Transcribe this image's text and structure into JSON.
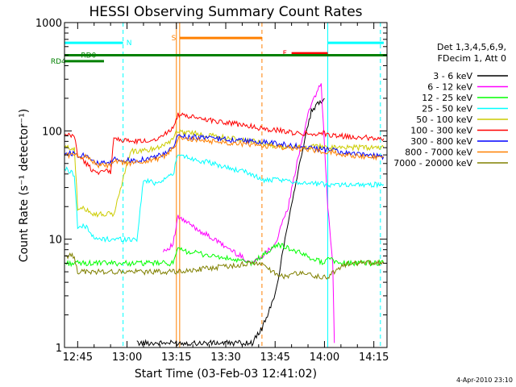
{
  "chart_data": {
    "type": "line",
    "title": "HESSI Observing Summary Count Rates",
    "xlabel": "Start Time (03-Feb-03 12:41:02)",
    "ylabel": "Count Rate (s⁻¹ detector⁻¹)",
    "yscale": "log",
    "ylim": [
      1,
      1000
    ],
    "xlim_minutes": [
      0,
      98
    ],
    "x_units": "minutes after 03-Feb-03 12:41:02",
    "x_ticks": [
      {
        "t": 4,
        "label": "12:45"
      },
      {
        "t": 19,
        "label": "13:00"
      },
      {
        "t": 34,
        "label": "13:15"
      },
      {
        "t": 49,
        "label": "13:30"
      },
      {
        "t": 64,
        "label": "13:45"
      },
      {
        "t": 79,
        "label": "14:00"
      },
      {
        "t": 94,
        "label": "14:15"
      }
    ],
    "y_ticks": [
      {
        "v": 1,
        "label": "1"
      },
      {
        "v": 10,
        "label": "10"
      },
      {
        "v": 100,
        "label": "100"
      },
      {
        "v": 1000,
        "label": "1000"
      }
    ],
    "legend_header": [
      "Det 1,3,4,5,6,9,",
      "FDecim 1, Att 0"
    ],
    "legend_position": "right",
    "series": [
      {
        "name": "3 - 6 keV",
        "color": "#000000",
        "x": [
          22,
          24,
          25,
          30,
          33,
          34.5,
          57,
          60,
          64,
          68,
          72,
          75,
          78,
          79
        ],
        "y": [
          1.1,
          1.1,
          1.1,
          1.1,
          1.1,
          1.1,
          1.1,
          1.5,
          3,
          15,
          60,
          150,
          190,
          200
        ]
      },
      {
        "name": "6 - 12 keV",
        "color": "#ff00ff",
        "x": [
          30,
          31,
          33,
          34.5,
          57,
          60,
          64,
          68,
          72,
          75,
          78,
          80,
          81.5,
          82
        ],
        "y": [
          8,
          8,
          9,
          16,
          6,
          7,
          9,
          20,
          80,
          180,
          270,
          20,
          6,
          1.1
        ]
      },
      {
        "name": "12 - 25 keV",
        "color": "#00ff00",
        "x": [
          0,
          5,
          6,
          16,
          18,
          22,
          24,
          33,
          34.5,
          57,
          65,
          79,
          80,
          83,
          86,
          97
        ],
        "y": [
          6,
          6,
          6,
          6,
          6,
          6,
          6,
          6,
          8,
          6,
          9,
          6,
          7,
          6,
          6,
          6
        ]
      },
      {
        "name": "25 - 50 keV",
        "color": "#00ffff",
        "x": [
          0,
          3,
          4,
          7,
          9,
          14,
          16,
          22,
          24,
          28,
          33,
          34.5,
          57,
          60,
          65,
          79,
          80,
          86,
          97
        ],
        "y": [
          45,
          40,
          13,
          13,
          10,
          10,
          10,
          10,
          35,
          33,
          40,
          60,
          40,
          35,
          35,
          32,
          32,
          32,
          32
        ]
      },
      {
        "name": "50 - 100 keV",
        "color": "#cccc00",
        "x": [
          0,
          3,
          4,
          7,
          9,
          14,
          15,
          20,
          24,
          28,
          32,
          34.5,
          57,
          62,
          68,
          79,
          82,
          88,
          97
        ],
        "y": [
          70,
          70,
          19,
          19,
          17,
          17,
          17,
          65,
          65,
          70,
          80,
          100,
          80,
          75,
          70,
          72,
          70,
          70,
          70
        ]
      },
      {
        "name": "100 - 300 keV",
        "color": "#ff0000",
        "x": [
          0,
          3,
          4,
          9,
          13,
          14,
          15,
          20,
          24,
          28,
          31,
          33,
          34.5,
          57,
          60,
          66,
          70,
          79,
          82,
          88,
          97
        ],
        "y": [
          90,
          90,
          60,
          42,
          42,
          42,
          85,
          80,
          80,
          85,
          95,
          110,
          140,
          110,
          105,
          100,
          95,
          95,
          90,
          88,
          85
        ]
      },
      {
        "name": "300 - 800 keV",
        "color": "#0000ff",
        "x": [
          0,
          3,
          4,
          7,
          10,
          14,
          15,
          20,
          24,
          28,
          31,
          33,
          34.5,
          57,
          62,
          68,
          74,
          80,
          86,
          90,
          97
        ],
        "y": [
          62,
          62,
          60,
          60,
          50,
          50,
          55,
          53,
          55,
          58,
          62,
          70,
          90,
          80,
          78,
          74,
          70,
          67,
          62,
          60,
          58
        ]
      },
      {
        "name": "800 - 7000 keV",
        "color": "#ff8000",
        "x": [
          0,
          3,
          4,
          7,
          10,
          14,
          15,
          20,
          24,
          28,
          31,
          33,
          34.5,
          57,
          62,
          68,
          74,
          80,
          86,
          90,
          97
        ],
        "y": [
          60,
          60,
          58,
          58,
          48,
          48,
          52,
          50,
          52,
          55,
          60,
          68,
          85,
          75,
          72,
          70,
          67,
          64,
          60,
          58,
          57
        ]
      },
      {
        "name": "7000 - 20000 keV",
        "color": "#808000",
        "x": [
          0,
          3,
          4,
          6,
          9,
          14,
          16,
          20,
          24,
          28,
          32,
          34.5,
          57,
          60,
          63,
          67,
          72,
          77,
          79,
          80,
          82,
          86,
          90,
          94,
          97
        ],
        "y": [
          7,
          7,
          5,
          5,
          5,
          5,
          5,
          5,
          5,
          5,
          5,
          5,
          6,
          6,
          5,
          4.5,
          5,
          4.5,
          4.5,
          4.5,
          5,
          6,
          6,
          6,
          6
        ]
      }
    ],
    "vertical_lines": [
      {
        "t": 0,
        "color": "#00ffff",
        "style": "solid"
      },
      {
        "t": 17.8,
        "color": "#00ffff",
        "style": "dashed"
      },
      {
        "t": 34,
        "color": "#ff8000",
        "style": "solid"
      },
      {
        "t": 35,
        "color": "#ff8000",
        "style": "solid"
      },
      {
        "t": 60,
        "color": "#ff8000",
        "style": "dashed"
      },
      {
        "t": 80,
        "color": "#00ffff",
        "style": "solid"
      },
      {
        "t": 96,
        "color": "#00ffff",
        "style": "dashed"
      }
    ],
    "interval_bars": [
      {
        "label": "N",
        "color": "#00ffff",
        "segments": [
          [
            0,
            17.8
          ],
          [
            80,
            97
          ]
        ],
        "y": 650,
        "label_t": 18.8
      },
      {
        "label": "S",
        "color": "#ff8000",
        "segments": [
          [
            35,
            60
          ]
        ],
        "y": 720,
        "label_t": 32.5
      },
      {
        "label": "F",
        "color": "#ff0000",
        "segments": [
          [
            69,
            80
          ]
        ],
        "y": 520,
        "label_t": 66.3
      },
      {
        "label": "RD0",
        "color": "#008000",
        "segments": [
          [
            0,
            98
          ]
        ],
        "y": 500,
        "label_t": 5
      },
      {
        "label": "RD4",
        "color": "#008000",
        "segments": [
          [
            0,
            12
          ]
        ],
        "y": 440,
        "label_t": -4.2
      }
    ],
    "footer_stamp": "4-Apr-2010 23:10"
  }
}
